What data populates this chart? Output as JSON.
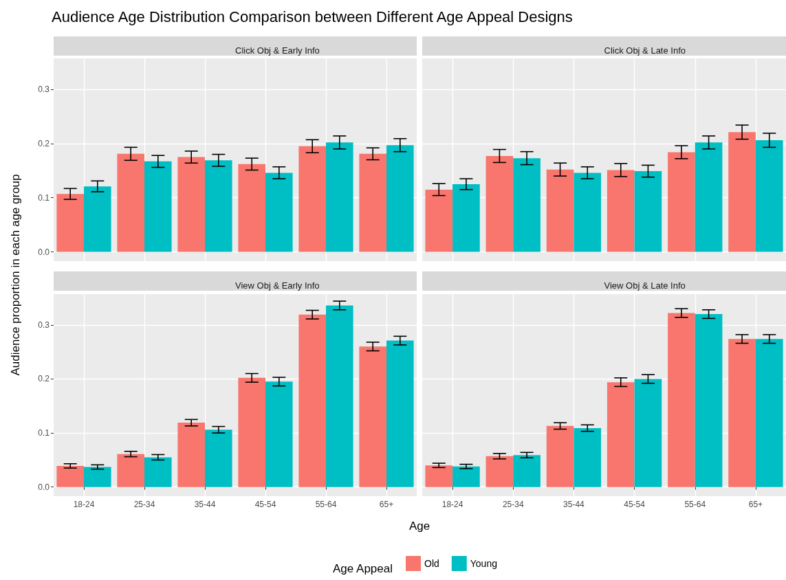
{
  "chart_data": [
    {
      "type": "bar",
      "title": "Audience Age Distribution Comparison between Different Age Appeal Designs",
      "subtitle": "Click Obj & Early Info",
      "ylabel": "Audience proportion in each age group",
      "legend_title": "Age Appeal",
      "legend": "bottom",
      "categories": [
        "18-24",
        "25-34",
        "35-44",
        "45-54",
        "55-64",
        "65+"
      ],
      "series": [
        {
          "name": "Old",
          "color": "#f8766d",
          "values": [
            0.107,
            0.181,
            0.175,
            0.162,
            0.195,
            0.181
          ],
          "errors": [
            0.01,
            0.012,
            0.011,
            0.011,
            0.012,
            0.011
          ]
        },
        {
          "name": "Young",
          "color": "#00bfc4",
          "values": [
            0.121,
            0.167,
            0.169,
            0.146,
            0.202,
            0.197
          ],
          "errors": [
            0.01,
            0.011,
            0.011,
            0.011,
            0.012,
            0.012
          ]
        }
      ],
      "ylim": [
        -0.017,
        0.357
      ],
      "yticks": [
        {
          "value": 0,
          "label": "0.0"
        },
        0.1,
        0.2,
        0.3
      ],
      "grid": true,
      "tick_labels": "y"
    },
    {
      "type": "bar",
      "subtitle": "Click Obj & Late Info",
      "categories": [
        "18-24",
        "25-34",
        "35-44",
        "45-54",
        "55-64",
        "65+"
      ],
      "series": [
        {
          "name": "Old",
          "color": "#f8766d",
          "values": [
            0.115,
            0.177,
            0.152,
            0.151,
            0.184,
            0.221
          ],
          "errors": [
            0.011,
            0.012,
            0.012,
            0.012,
            0.012,
            0.013
          ]
        },
        {
          "name": "Young",
          "color": "#00bfc4",
          "values": [
            0.125,
            0.173,
            0.146,
            0.149,
            0.202,
            0.206
          ],
          "errors": [
            0.01,
            0.012,
            0.011,
            0.011,
            0.012,
            0.013
          ]
        }
      ],
      "ylim": [
        -0.017,
        0.357
      ],
      "yticks": [
        0,
        0.1,
        0.2,
        0.3
      ],
      "grid": true,
      "tick_labels": false
    },
    {
      "type": "bar",
      "subtitle": "View Obj & Early Info",
      "xlabel": "Age",
      "categories": [
        "18-24",
        "25-34",
        "35-44",
        "45-54",
        "55-64",
        "65+"
      ],
      "series": [
        {
          "name": "Old",
          "color": "#f8766d",
          "values": [
            0.039,
            0.061,
            0.119,
            0.202,
            0.319,
            0.26
          ],
          "errors": [
            0.004,
            0.005,
            0.006,
            0.008,
            0.008,
            0.008
          ]
        },
        {
          "name": "Young",
          "color": "#00bfc4",
          "values": [
            0.037,
            0.055,
            0.106,
            0.195,
            0.336,
            0.271
          ],
          "errors": [
            0.004,
            0.005,
            0.006,
            0.008,
            0.008,
            0.008
          ]
        }
      ],
      "ylim": [
        -0.017,
        0.357
      ],
      "yticks": [
        {
          "value": 0,
          "label": "0.0"
        },
        0.1,
        0.2,
        0.3
      ],
      "grid": true
    },
    {
      "type": "bar",
      "subtitle": "View Obj & Late Info",
      "categories": [
        "18-24",
        "25-34",
        "35-44",
        "45-54",
        "55-64",
        "65+"
      ],
      "series": [
        {
          "name": "Old",
          "color": "#f8766d",
          "values": [
            0.04,
            0.057,
            0.113,
            0.194,
            0.322,
            0.274
          ],
          "errors": [
            0.004,
            0.005,
            0.006,
            0.008,
            0.008,
            0.008
          ]
        },
        {
          "name": "Young",
          "color": "#00bfc4",
          "values": [
            0.038,
            0.059,
            0.109,
            0.2,
            0.32,
            0.274
          ],
          "errors": [
            0.004,
            0.005,
            0.006,
            0.008,
            0.008,
            0.008
          ]
        }
      ],
      "ylim": [
        -0.017,
        0.357
      ],
      "yticks": [
        0,
        0.1,
        0.2,
        0.3
      ],
      "grid": true,
      "tick_labels": "x"
    }
  ]
}
